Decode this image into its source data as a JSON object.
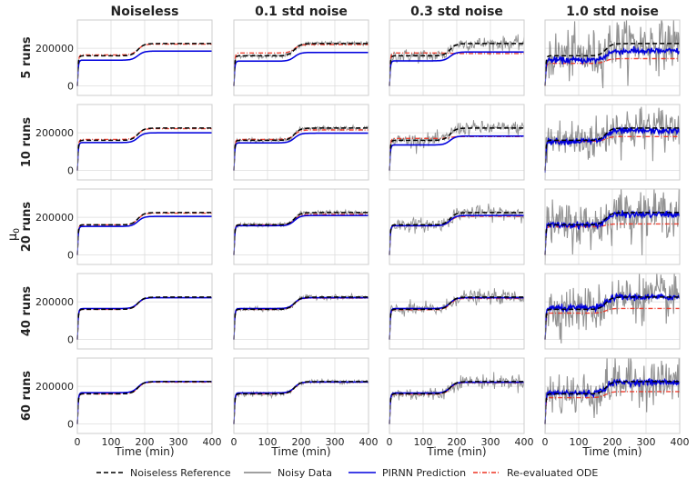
{
  "figure": {
    "ylabel": "μ0",
    "xlabel": "Time (min)",
    "columns": [
      "Noiseless",
      "0.1 std noise",
      "0.3 std noise",
      "1.0 std noise"
    ],
    "rows": [
      "5 runs",
      "10 runs",
      "20 runs",
      "40 runs",
      "60 runs"
    ]
  },
  "legend": {
    "items": [
      {
        "label": "Noiseless Reference",
        "color": "#000000",
        "style": "dashed"
      },
      {
        "label": "Noisy Data",
        "color": "#808080",
        "style": "solid"
      },
      {
        "label": "PIRNN Prediction",
        "color": "#0000dd",
        "style": "solid"
      },
      {
        "label": "Re-evaluated ODE",
        "color": "#ee3322",
        "style": "dashdot"
      }
    ]
  },
  "chart_data": {
    "type": "line",
    "layout": "grid 5x4 small multiples",
    "xlim": [
      0,
      400
    ],
    "ylim": [
      -50000,
      350000
    ],
    "xticks": [
      0,
      100,
      200,
      300,
      400
    ],
    "yticks": [
      0,
      200000
    ],
    "xtick_labels": [
      "0",
      "100",
      "200",
      "300",
      "400"
    ],
    "ytick_labels": [
      "0",
      "200000"
    ],
    "reference": {
      "name": "Noiseless Reference",
      "description": "rapid rise to ~160000 in first 10 min, plateau, sigmoid step near t=170-200 min to ~225000",
      "low_plateau": 160000,
      "high_plateau": 225000,
      "step_center": 180
    },
    "noise_std": [
      0,
      0.1,
      0.3,
      1.0
    ],
    "pirnn_final_values": [
      [
        185000,
        178000,
        180000,
        185000
      ],
      [
        200000,
        198000,
        183000,
        210000
      ],
      [
        205000,
        210000,
        210000,
        215000
      ],
      [
        222000,
        222000,
        222000,
        225000
      ],
      [
        225000,
        223000,
        222000,
        222000
      ]
    ],
    "ode_final_values": [
      [
        222000,
        220000,
        172000,
        145000
      ],
      [
        222000,
        215000,
        180000,
        180000
      ],
      [
        222000,
        215000,
        205000,
        165000
      ],
      [
        222000,
        220000,
        218000,
        165000
      ],
      [
        222000,
        222000,
        220000,
        172000
      ]
    ],
    "ode_initial_plateau": [
      [
        165000,
        175000,
        175000,
        120000
      ],
      [
        165000,
        165000,
        170000,
        155000
      ],
      [
        160000,
        160000,
        155000,
        150000
      ],
      [
        160000,
        160000,
        158000,
        140000
      ],
      [
        160000,
        160000,
        158000,
        140000
      ]
    ]
  }
}
